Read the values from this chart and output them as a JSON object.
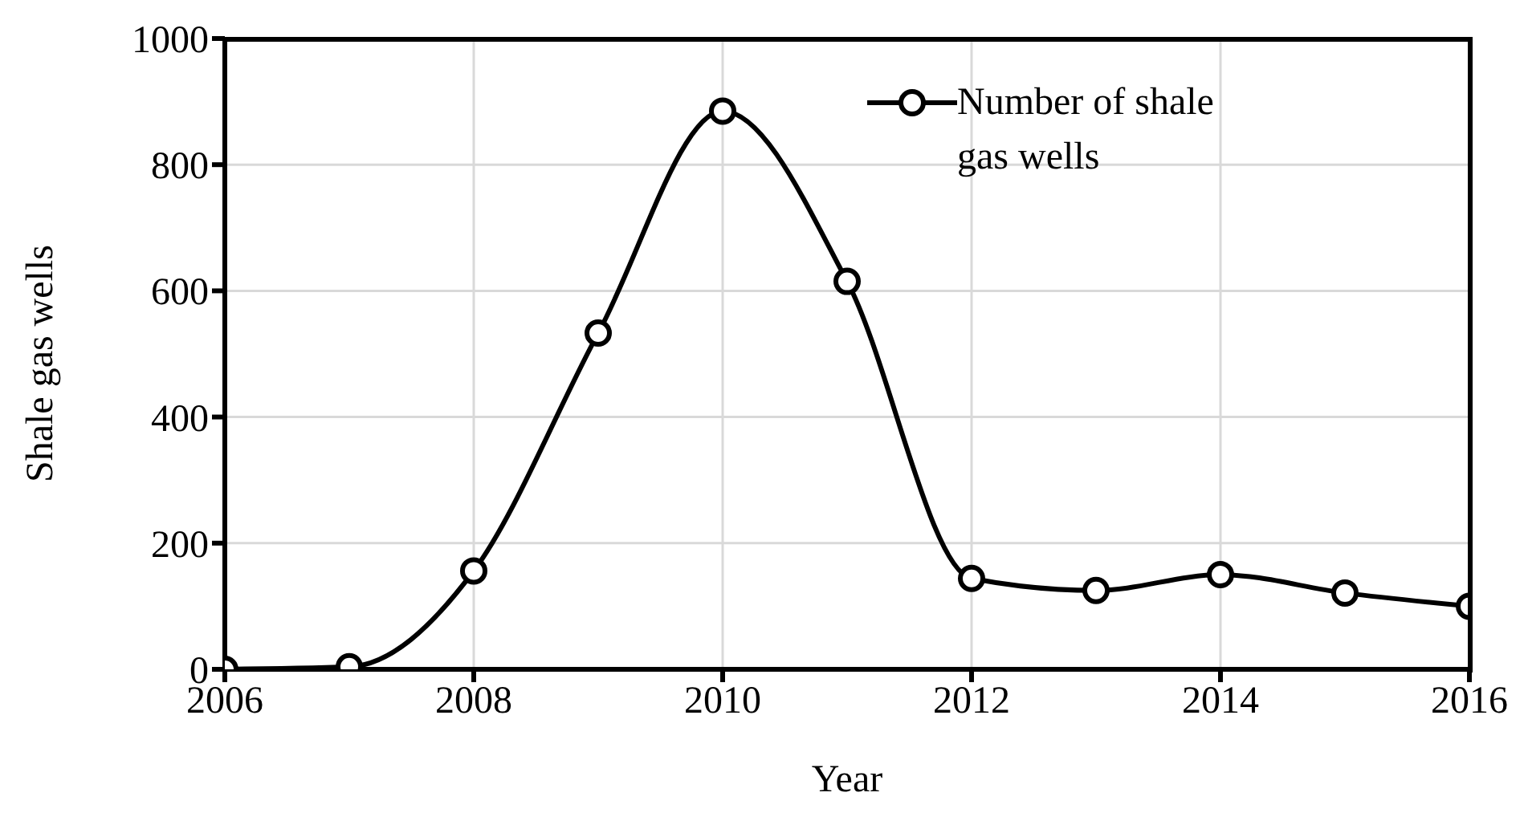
{
  "chart_data": {
    "type": "line",
    "xlabel": "Year",
    "ylabel": "Shale gas wells",
    "x": [
      2006,
      2007,
      2008,
      2009,
      2010,
      2011,
      2012,
      2013,
      2014,
      2015,
      2016
    ],
    "series": [
      {
        "name": "Number of shale gas wells",
        "color": "#000000",
        "values": [
          0,
          4,
          156,
          533,
          885,
          615,
          144,
          125,
          150,
          121,
          100
        ]
      }
    ],
    "xlim": [
      2006,
      2016
    ],
    "xticks": [
      2006,
      2008,
      2010,
      2012,
      2014,
      2016
    ],
    "ylim": [
      0,
      1000
    ],
    "yticks": [
      0,
      200,
      400,
      600,
      800,
      1000
    ],
    "grid": true,
    "legend": "top right",
    "marker": "circle",
    "line_style": "solid"
  }
}
